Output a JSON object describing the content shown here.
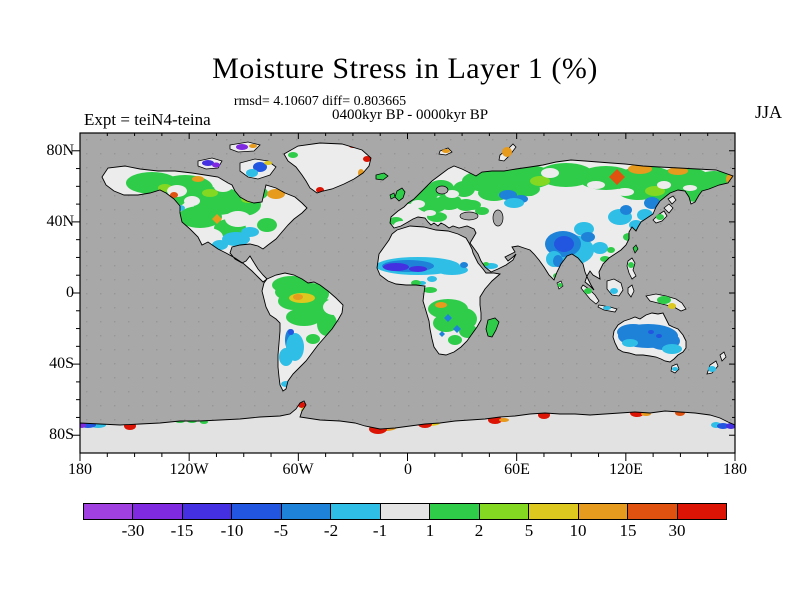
{
  "title": "Moisture Stress in Layer 1 (%)",
  "stats_line": "rmsd= 4.10607 diff= 0.803665",
  "period_line": "0400kyr BP - 0000kyr BP",
  "experiment_label": "Expt = teiN4-teina",
  "season_label": "JJA",
  "map": {
    "x_tick_labels": [
      "180",
      "120W",
      "60W",
      "0",
      "60E",
      "120E",
      "180"
    ],
    "y_tick_labels": [
      "80N",
      "40N",
      "0",
      "40S",
      "80S"
    ],
    "ocean_color": "#a8a8a8",
    "land_neutral_color": "#ececec",
    "antarctica_color": "#e2e2e2",
    "coastline_color": "#000000"
  },
  "colorbar": {
    "labels": [
      "-30",
      "-15",
      "-10",
      "-5",
      "-2",
      "-1",
      "1",
      "2",
      "5",
      "10",
      "15",
      "30"
    ],
    "colors": [
      "#a040e0",
      "#7f2ae0",
      "#4430e0",
      "#2255e0",
      "#1e82d8",
      "#2fbee6",
      "#e4e4e4",
      "#2fcc4a",
      "#84d822",
      "#dcc81e",
      "#e69a1e",
      "#e05210",
      "#dc1405"
    ]
  },
  "chart_data": {
    "type": "heatmap",
    "title": "Moisture Stress in Layer 1 (%)",
    "subtitle_stats": {
      "rmsd": 4.10607,
      "diff": 0.803665
    },
    "comparison": "0400kyr BP - 0000kyr BP",
    "experiment": "teiN4-teina",
    "season": "JJA",
    "units": "%",
    "projection": "equirectangular",
    "lon_range": [
      -180,
      180
    ],
    "lat_range": [
      -90,
      90
    ],
    "x_ticks_deg": [
      -180,
      -120,
      -60,
      0,
      60,
      120,
      180
    ],
    "x_minor_tick_deg": 15,
    "y_ticks_deg": [
      80,
      40,
      0,
      -40,
      -80
    ],
    "y_minor_tick_deg": 10,
    "levels": [
      -30,
      -15,
      -10,
      -5,
      -2,
      -1,
      1,
      2,
      5,
      10,
      15,
      30
    ],
    "level_colors": [
      "#a040e0",
      "#7f2ae0",
      "#4430e0",
      "#2255e0",
      "#1e82d8",
      "#2fbee6",
      "#e4e4e4",
      "#2fcc4a",
      "#84d822",
      "#dcc81e",
      "#e69a1e",
      "#e05210",
      "#dc1405"
    ],
    "legend_position": "bottom",
    "grid": false,
    "region_readings": [
      {
        "region": "Sahel band (Africa ~6-20N)",
        "value_range": "-30 to -5"
      },
      {
        "region": "India / Tibetan Plateau",
        "value_range": "-10 to -2"
      },
      {
        "region": "Australia interior",
        "value_range": "-5 to -1"
      },
      {
        "region": "Siberia / boreal Eurasia",
        "value_range": "+1 to +15 with spots >+30"
      },
      {
        "region": "Alaska / boreal North America",
        "value_range": "+1 to +10"
      },
      {
        "region": "Amazon basin",
        "value_range": "+2 to +10"
      },
      {
        "region": "Southern Africa",
        "value_range": "+1 to +5"
      },
      {
        "region": "Sahara, Arabia, central Asia deserts",
        "value_range": "-1 to +1 (neutral)"
      },
      {
        "region": "Argentina / southeast South America",
        "value_range": "-5 to -1"
      },
      {
        "region": "Canadian Arctic islands",
        "value_range": "-30 to -10"
      },
      {
        "region": "Greenland interior",
        "value_range": "-1 to +1 (neutral)"
      },
      {
        "region": "Antarctic coastal spots",
        "value_range": "+15 to >+30"
      }
    ]
  }
}
